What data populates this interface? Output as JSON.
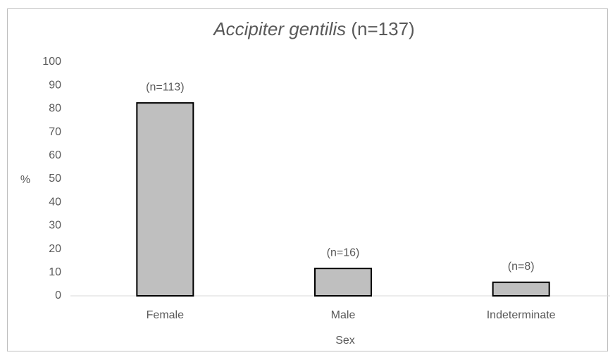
{
  "chart_data": {
    "type": "bar",
    "title_parts": [
      "Accipiter gentilis",
      "(n=137)"
    ],
    "x_label": "Sex",
    "y_label": "%",
    "categories": [
      "Female",
      "Male",
      "Indeterminate"
    ],
    "values": [
      82.5,
      11.7,
      5.8
    ],
    "bar_annotations": [
      "(n=113)",
      "(n=16)",
      "(n=8)"
    ],
    "color": "#bfbfbf",
    "ylim": [
      0,
      100
    ],
    "yticks": [
      0,
      10,
      20,
      30,
      40,
      50,
      60,
      70,
      80,
      90,
      100
    ],
    "grid": false
  }
}
